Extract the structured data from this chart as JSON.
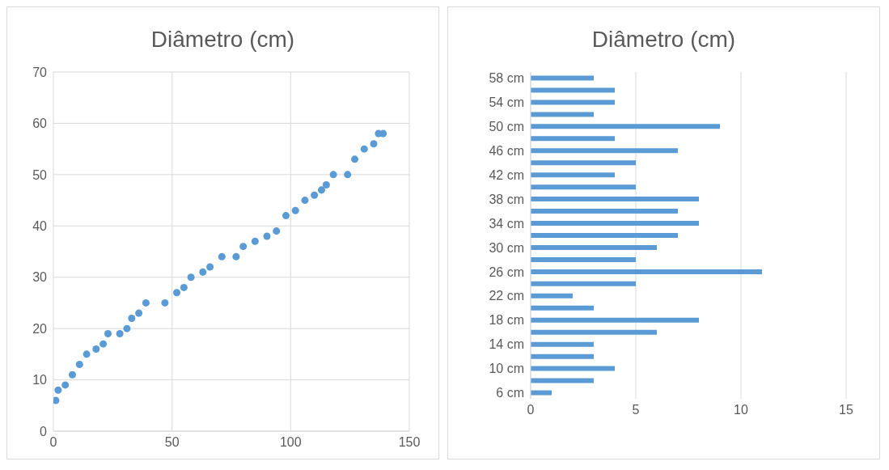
{
  "chart_data": [
    {
      "type": "scatter",
      "title": "Diâmetro (cm)",
      "color": "#5b9bd5",
      "marker": "circle",
      "grid": true,
      "x": [
        1,
        2,
        5,
        8,
        11,
        14,
        18,
        21,
        23,
        28,
        31,
        33,
        36,
        39,
        47,
        52,
        55,
        58,
        63,
        66,
        71,
        77,
        80,
        85,
        90,
        94,
        98,
        102,
        106,
        110,
        113,
        115,
        118,
        124,
        127,
        131,
        135,
        137,
        139
      ],
      "values": [
        6,
        8,
        9,
        11,
        13,
        15,
        16,
        17,
        19,
        19,
        20,
        22,
        23,
        25,
        25,
        27,
        28,
        30,
        31,
        32,
        34,
        34,
        36,
        37,
        38,
        39,
        42,
        43,
        45,
        46,
        47,
        48,
        50,
        50,
        53,
        55,
        56,
        58,
        58
      ],
      "xlim": [
        0,
        150
      ],
      "xticks": [
        0,
        50,
        100,
        150
      ],
      "ylim": [
        0,
        70
      ],
      "yticks": [
        0,
        10,
        20,
        30,
        40,
        50,
        60,
        70
      ]
    },
    {
      "type": "bar",
      "title": "Diâmetro (cm)",
      "orientation": "horizontal",
      "color": "#5b9bd5",
      "grid": "x",
      "categories": [
        "58 cm",
        null,
        "54 cm",
        null,
        "50 cm",
        null,
        "46 cm",
        null,
        "42 cm",
        null,
        "38 cm",
        null,
        "34 cm",
        null,
        "30 cm",
        null,
        "26 cm",
        null,
        "22 cm",
        null,
        "18 cm",
        null,
        "14 cm",
        null,
        "10 cm",
        null,
        "6 cm"
      ],
      "values": [
        3,
        4,
        4,
        3,
        9,
        4,
        7,
        5,
        4,
        5,
        8,
        7,
        8,
        7,
        6,
        5,
        11,
        5,
        2,
        3,
        8,
        6,
        3,
        3,
        4,
        3,
        1
      ],
      "xlim": [
        0,
        15
      ],
      "xticks": [
        0,
        5,
        10,
        15
      ]
    }
  ]
}
